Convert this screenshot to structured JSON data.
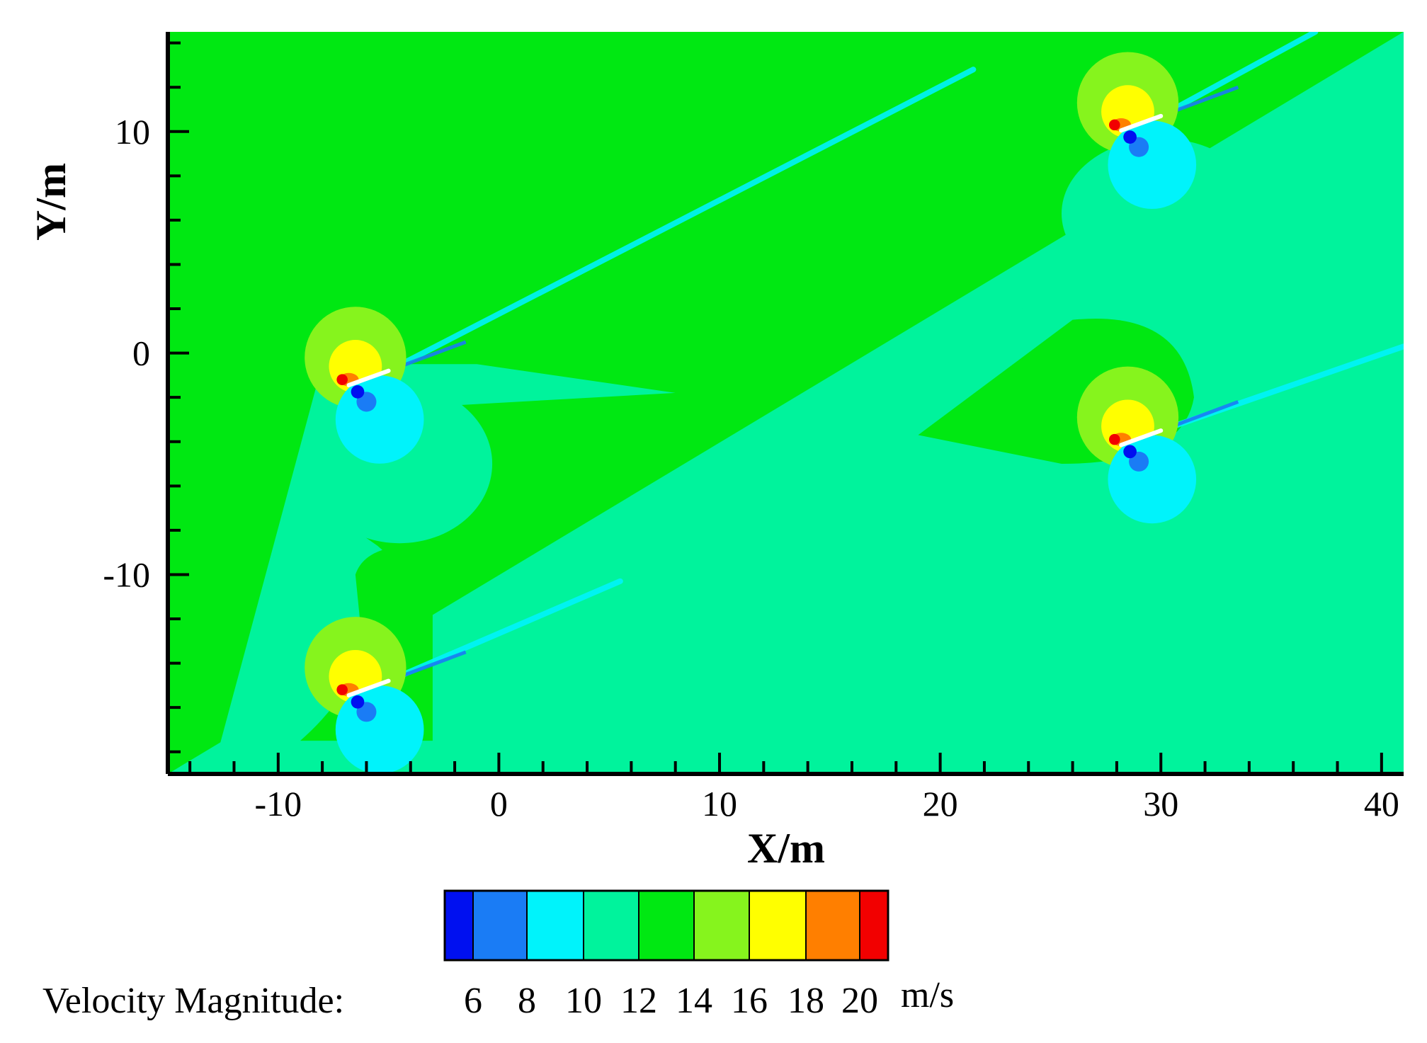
{
  "chart_data": {
    "type": "contour",
    "xlabel": "X/m",
    "ylabel": "Y/m",
    "xlim": [
      -15,
      41
    ],
    "ylim": [
      -19,
      14.5
    ],
    "xticks": [
      -10,
      0,
      10,
      20,
      30,
      40
    ],
    "yticks": [
      -10,
      0,
      10
    ],
    "x_tick_labels": [
      "-10",
      "0",
      "10",
      "20",
      "30",
      "40"
    ],
    "y_tick_labels": [
      "-10",
      "0",
      "10"
    ],
    "colorbar": {
      "title": "Velocity Magnitude:",
      "unit": "m/s",
      "labels": [
        "6",
        "8",
        "10",
        "12",
        "14",
        "16",
        "18",
        "20"
      ],
      "levels": [
        5,
        6,
        8,
        10,
        12,
        14,
        16,
        18,
        20,
        21
      ],
      "colors": [
        "#0010f0",
        "#1a7cf5",
        "#00f3fb",
        "#00f39c",
        "#00e812",
        "#86f41d",
        "#ffff00",
        "#ff7f00",
        "#f20000"
      ]
    },
    "field": {
      "freestream_velocity": 13,
      "wake_velocity": 11,
      "turbines": [
        {
          "x": -6.5,
          "y": -1.5
        },
        {
          "x": -6.5,
          "y": -15.5
        },
        {
          "x": 28.5,
          "y": 10
        },
        {
          "x": 28.5,
          "y": -4.2
        }
      ],
      "wake_streak_ends": [
        {
          "x": 21.5,
          "y": 12.8
        },
        {
          "x": 5.5,
          "y": -10.3
        },
        {
          "x": 37,
          "y": 14.5
        },
        {
          "x": 41,
          "y": 0.3
        }
      ]
    }
  }
}
